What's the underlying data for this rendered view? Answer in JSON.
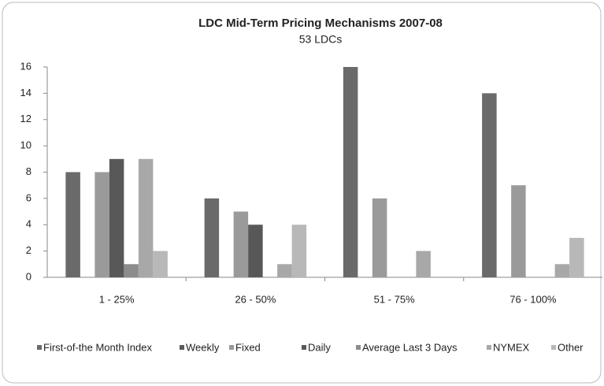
{
  "chart_data": {
    "type": "bar",
    "title": "LDC Mid-Term Pricing Mechanisms 2007-08",
    "subtitle": "53 LDCs",
    "categories": [
      "1 - 25%",
      "26 - 50%",
      "51 - 75%",
      "76 - 100%"
    ],
    "series": [
      {
        "name": "First-of-the Month Index",
        "color": "#6a6a6a",
        "values": [
          8,
          6,
          16,
          14
        ]
      },
      {
        "name": "Weekly",
        "color": "#5a5a5a",
        "values": [
          0,
          0,
          0,
          0
        ]
      },
      {
        "name": "Fixed",
        "color": "#9a9a9a",
        "values": [
          8,
          5,
          6,
          7
        ]
      },
      {
        "name": "Daily",
        "color": "#585858",
        "values": [
          9,
          4,
          0,
          0
        ]
      },
      {
        "name": "Average Last 3 Days",
        "color": "#8c8c8c",
        "values": [
          1,
          0,
          0,
          0
        ]
      },
      {
        "name": "NYMEX",
        "color": "#a8a8a8",
        "values": [
          9,
          1,
          2,
          1
        ]
      },
      {
        "name": "Other",
        "color": "#b8b8b8",
        "values": [
          2,
          4,
          0,
          3
        ]
      }
    ],
    "ylim": [
      0,
      16
    ],
    "yticks": [
      0,
      2,
      4,
      6,
      8,
      10,
      12,
      14,
      16
    ],
    "grid": false,
    "legend": "bottom"
  }
}
